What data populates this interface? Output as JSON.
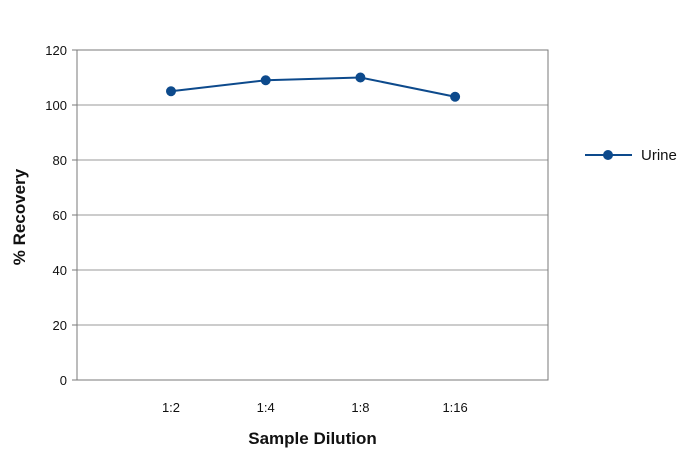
{
  "chart_data": {
    "type": "line",
    "title": "",
    "xlabel": "Sample Dilution",
    "ylabel": "% Recovery",
    "categories": [
      "1:2",
      "1:4",
      "1:8",
      "1:16"
    ],
    "series": [
      {
        "name": "Urine",
        "values": [
          105,
          109,
          110,
          103
        ],
        "color": "#0d4a8c"
      }
    ],
    "ylim": [
      0,
      120
    ],
    "yticks": [
      0,
      20,
      40,
      60,
      80,
      100,
      120
    ],
    "grid": "horizontal",
    "legend": "right"
  }
}
